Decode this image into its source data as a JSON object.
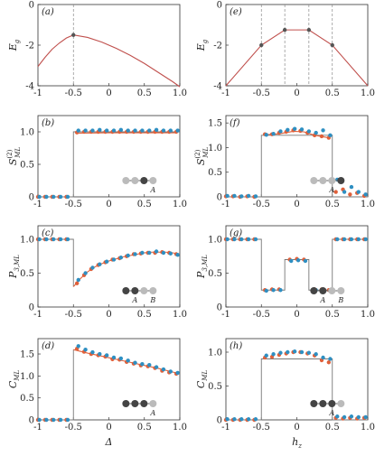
{
  "chart_data": [
    {
      "type": "line",
      "panel_label": "(a)",
      "xlabel": "",
      "ylabel": "E_g",
      "xlim": [
        -1,
        1
      ],
      "ylim": [
        -4,
        0
      ],
      "xticks": [
        "-1",
        "-0.5",
        "0",
        "0.5",
        "1.0"
      ],
      "yticks": [
        "-4",
        "-2",
        "0"
      ],
      "vlines": [
        -0.5
      ],
      "series": [
        {
          "kind": "line",
          "color": "#c0504d",
          "x": [
            -1,
            -0.9,
            -0.8,
            -0.7,
            -0.6,
            -0.5,
            -0.3,
            -0.1,
            0.1,
            0.3,
            0.5,
            0.7,
            0.9,
            1.0
          ],
          "y": [
            -3.05,
            -2.6,
            -2.2,
            -1.9,
            -1.65,
            -1.5,
            -1.62,
            -1.85,
            -2.15,
            -2.5,
            -2.9,
            -3.35,
            -3.8,
            -4.05
          ]
        },
        {
          "kind": "marker",
          "color": "#555555",
          "x": [
            -0.5
          ],
          "y": [
            -1.5
          ]
        }
      ]
    },
    {
      "type": "line",
      "panel_label": "(e)",
      "xlabel": "",
      "ylabel": "E_g",
      "xlim": [
        -1,
        1
      ],
      "ylim": [
        -4,
        0
      ],
      "xticks": [
        "-1",
        "-0.5",
        "0",
        "0.5",
        "1.0"
      ],
      "yticks": [
        "-4",
        "-2",
        "0"
      ],
      "vlines": [
        -0.5,
        -0.17,
        0.17,
        0.5
      ],
      "series": [
        {
          "kind": "line",
          "color": "#c0504d",
          "x": [
            -1,
            -0.5,
            -0.17,
            0.17,
            0.5,
            1.0
          ],
          "y": [
            -4,
            -2,
            -1.25,
            -1.25,
            -2,
            -4
          ]
        },
        {
          "kind": "marker",
          "color": "#555555",
          "x": [
            -0.5,
            -0.17,
            0.17,
            0.5
          ],
          "y": [
            -2,
            -1.25,
            -1.25,
            -2
          ]
        }
      ]
    },
    {
      "type": "scatter",
      "panel_label": "(b)",
      "xlabel": "",
      "ylabel": "S_ML",
      "ylabel_sup": "(2)",
      "xlim": [
        -1,
        1
      ],
      "ylim": [
        0,
        1.25
      ],
      "xticks": [
        "-1",
        "-0.5",
        "0",
        "0.5",
        "1.0"
      ],
      "yticks": [
        "0",
        "0.5",
        "1.0"
      ],
      "step": {
        "x": [
          -1,
          -0.5,
          -0.5,
          1
        ],
        "y": [
          0,
          0,
          1.0,
          1.0
        ]
      },
      "series": [
        {
          "kind": "line",
          "color": "#e0603a",
          "x": [
            -0.45,
            0.0,
            0.5,
            0.95
          ],
          "y": [
            0.98,
            0.985,
            0.985,
            0.985
          ]
        },
        {
          "kind": "marker",
          "color": "#e0603a",
          "x": [
            -1,
            -0.9,
            -0.8,
            -0.7,
            -0.6,
            -0.45,
            -0.35,
            -0.25,
            -0.15,
            -0.05,
            0.05,
            0.15,
            0.25,
            0.35,
            0.45,
            0.55,
            0.65,
            0.75,
            0.85,
            0.95
          ],
          "y": [
            0,
            0,
            0,
            0,
            0,
            0.99,
            1.0,
            1.0,
            1.0,
            1.0,
            1.0,
            1.0,
            1.0,
            1.0,
            1.0,
            1.0,
            1.0,
            1.0,
            1.0,
            1.0
          ]
        },
        {
          "kind": "marker",
          "color": "#2e8fc2",
          "x": [
            -0.98,
            -0.88,
            -0.78,
            -0.68,
            -0.58,
            -0.43,
            -0.33,
            -0.23,
            -0.13,
            -0.03,
            0.07,
            0.17,
            0.27,
            0.37,
            0.47,
            0.57,
            0.67,
            0.77,
            0.87,
            0.97
          ],
          "y": [
            0,
            0,
            0,
            0,
            0,
            1.02,
            1.02,
            1.02,
            1.03,
            1.02,
            1.02,
            1.03,
            1.02,
            1.02,
            1.02,
            1.02,
            1.03,
            1.02,
            1.02,
            1.02
          ]
        }
      ],
      "inset": {
        "pattern": [
          "light",
          "light",
          "dark",
          "light"
        ],
        "labels": [
          {
            "text": "A",
            "at": 3
          }
        ]
      }
    },
    {
      "type": "scatter",
      "panel_label": "(f)",
      "xlabel": "",
      "ylabel": "S_ML",
      "ylabel_sup": "(2)",
      "xlim": [
        -1,
        1
      ],
      "ylim": [
        0,
        1.65
      ],
      "xticks": [
        "-1",
        "-0.5",
        "0",
        "0.5",
        "1.0"
      ],
      "yticks": [
        "0",
        "0.5",
        "1.0",
        "1.5"
      ],
      "step": {
        "x": [
          -1,
          -0.5,
          -0.5,
          0.5,
          0.5,
          1
        ],
        "y": [
          0,
          0,
          1.25,
          1.25,
          0,
          0
        ]
      },
      "series": [
        {
          "kind": "line",
          "color": "#e0603a",
          "x": [
            -0.45,
            -0.25,
            -0.05,
            0.1,
            0.25,
            0.45
          ],
          "y": [
            1.26,
            1.28,
            1.33,
            1.32,
            1.25,
            1.2
          ]
        },
        {
          "kind": "marker",
          "color": "#e0603a",
          "x": [
            -1,
            -0.9,
            -0.8,
            -0.7,
            -0.6,
            -0.45,
            -0.35,
            -0.25,
            -0.15,
            -0.05,
            0.05,
            0.15,
            0.25,
            0.35,
            0.45,
            0.55,
            0.65,
            0.75,
            0.85,
            0.95
          ],
          "y": [
            0.01,
            0.01,
            0.0,
            0.01,
            0.0,
            1.27,
            1.27,
            1.3,
            1.32,
            1.35,
            1.34,
            1.3,
            1.25,
            1.23,
            1.2,
            0.1,
            0.15,
            0.05,
            0.08,
            0.02
          ]
        },
        {
          "kind": "marker",
          "color": "#2e8fc2",
          "x": [
            -0.98,
            -0.88,
            -0.78,
            -0.68,
            -0.58,
            -0.43,
            -0.33,
            -0.23,
            -0.13,
            -0.03,
            0.07,
            0.17,
            0.27,
            0.37,
            0.47,
            0.57,
            0.67,
            0.77,
            0.87,
            0.97
          ],
          "y": [
            0.02,
            0.02,
            0.01,
            0.02,
            0.01,
            1.26,
            1.28,
            1.33,
            1.36,
            1.38,
            1.37,
            1.33,
            1.3,
            1.35,
            1.25,
            0.35,
            0.1,
            0.2,
            0.1,
            0.05
          ]
        }
      ],
      "inset": {
        "pattern": [
          "light",
          "light",
          "light",
          "dark"
        ],
        "labels": [
          {
            "text": "A",
            "at": 2
          }
        ]
      }
    },
    {
      "type": "scatter",
      "panel_label": "(c)",
      "xlabel": "",
      "ylabel": "P_3,ML",
      "xlim": [
        -1,
        1
      ],
      "ylim": [
        0,
        1.2
      ],
      "xticks": [
        "-1",
        "-0.5",
        "0",
        "0.5",
        "1.0"
      ],
      "yticks": [
        "0",
        "0.5",
        "1.0"
      ],
      "step": {
        "x": [
          -1,
          -0.5,
          -0.5
        ],
        "y": [
          1.0,
          1.0,
          0.3
        ]
      },
      "series": [
        {
          "kind": "line",
          "color": "#e0603a",
          "x": [
            -0.5,
            -0.4,
            -0.3,
            -0.2,
            -0.1,
            0.0,
            0.1,
            0.2,
            0.3,
            0.4,
            0.5,
            0.6,
            0.7,
            0.8,
            0.9,
            1.0
          ],
          "y": [
            0.3,
            0.42,
            0.52,
            0.59,
            0.64,
            0.68,
            0.71,
            0.74,
            0.76,
            0.78,
            0.8,
            0.81,
            0.81,
            0.81,
            0.8,
            0.78
          ]
        },
        {
          "kind": "marker",
          "color": "#e0603a",
          "x": [
            -1,
            -0.9,
            -0.8,
            -0.7,
            -0.6,
            -0.45,
            -0.35,
            -0.25,
            -0.15,
            -0.05,
            0.05,
            0.15,
            0.25,
            0.35,
            0.45,
            0.55,
            0.65,
            0.75,
            0.85,
            0.95
          ],
          "y": [
            1.0,
            1.0,
            1.0,
            1.0,
            1.0,
            0.35,
            0.47,
            0.56,
            0.62,
            0.66,
            0.7,
            0.72,
            0.75,
            0.78,
            0.79,
            0.8,
            0.8,
            0.81,
            0.8,
            0.78
          ]
        },
        {
          "kind": "marker",
          "color": "#2e8fc2",
          "x": [
            -0.98,
            -0.88,
            -0.78,
            -0.68,
            -0.58,
            -0.43,
            -0.33,
            -0.23,
            -0.13,
            -0.03,
            0.07,
            0.17,
            0.27,
            0.37,
            0.47,
            0.57,
            0.67,
            0.77,
            0.87,
            0.97
          ],
          "y": [
            1.0,
            1.0,
            1.0,
            1.0,
            1.0,
            0.4,
            0.5,
            0.58,
            0.63,
            0.67,
            0.7,
            0.73,
            0.76,
            0.78,
            0.8,
            0.8,
            0.82,
            0.8,
            0.79,
            0.77
          ]
        }
      ],
      "inset": {
        "pattern": [
          "dark",
          "dark",
          "light",
          "light"
        ],
        "labels": [
          {
            "text": "A",
            "at": 1
          },
          {
            "text": "B",
            "at": 3
          }
        ]
      }
    },
    {
      "type": "scatter",
      "panel_label": "(g)",
      "xlabel": "",
      "ylabel": "P_3,ML",
      "xlim": [
        -1,
        1
      ],
      "ylim": [
        0,
        1.2
      ],
      "xticks": [
        "-1",
        "-0.5",
        "0",
        "0.5",
        "1.0"
      ],
      "yticks": [
        "0",
        "0.5",
        "1.0"
      ],
      "step": {
        "x": [
          -1,
          -0.5,
          -0.5,
          -0.17,
          -0.17,
          0.17,
          0.17,
          0.5,
          0.5,
          1
        ],
        "y": [
          1.0,
          1.0,
          0.25,
          0.25,
          0.7,
          0.7,
          0.25,
          0.25,
          1.0,
          1.0
        ]
      },
      "series": [
        {
          "kind": "marker",
          "color": "#e0603a",
          "x": [
            -1,
            -0.9,
            -0.8,
            -0.7,
            -0.6,
            -0.45,
            -0.35,
            -0.25,
            -0.1,
            0.0,
            0.1,
            0.25,
            0.35,
            0.45,
            0.55,
            0.65,
            0.75,
            0.85,
            0.95
          ],
          "y": [
            1.0,
            1.0,
            1.0,
            1.0,
            1.0,
            0.25,
            0.26,
            0.26,
            0.7,
            0.71,
            0.7,
            0.26,
            0.26,
            0.25,
            1.0,
            1.0,
            1.0,
            1.0,
            1.0
          ]
        },
        {
          "kind": "marker",
          "color": "#2e8fc2",
          "x": [
            -0.98,
            -0.88,
            -0.78,
            -0.68,
            -0.58,
            -0.43,
            -0.33,
            -0.23,
            -0.08,
            0.02,
            0.12,
            0.27,
            0.37,
            0.47,
            0.57,
            0.67,
            0.77,
            0.87,
            0.97
          ],
          "y": [
            1.0,
            1.0,
            1.0,
            1.0,
            1.0,
            0.24,
            0.25,
            0.25,
            0.68,
            0.69,
            0.68,
            0.25,
            0.25,
            0.24,
            1.0,
            1.0,
            1.0,
            1.0,
            1.0
          ]
        }
      ],
      "inset": {
        "pattern": [
          "dark",
          "dark",
          "light",
          "light"
        ],
        "labels": [
          {
            "text": "A",
            "at": 1
          },
          {
            "text": "B",
            "at": 3
          }
        ]
      }
    },
    {
      "type": "scatter",
      "panel_label": "(d)",
      "xlabel": "Δ",
      "ylabel": "C_ML",
      "xlim": [
        -1,
        1
      ],
      "ylim": [
        0,
        1.85
      ],
      "xticks": [
        "-1",
        "-0.5",
        "0",
        "0.5",
        "1.0"
      ],
      "yticks": [
        "0",
        "0.5",
        "1.0",
        "1.5"
      ],
      "step": {
        "x": [
          -1,
          -0.5,
          -0.5
        ],
        "y": [
          0,
          0,
          1.6
        ]
      },
      "series": [
        {
          "kind": "line",
          "color": "#e0603a",
          "x": [
            -0.5,
            -0.3,
            -0.1,
            0.1,
            0.3,
            0.5,
            0.7,
            0.9,
            1.0
          ],
          "y": [
            1.6,
            1.52,
            1.45,
            1.38,
            1.31,
            1.24,
            1.17,
            1.09,
            1.05
          ]
        },
        {
          "kind": "marker",
          "color": "#e0603a",
          "x": [
            -1,
            -0.9,
            -0.8,
            -0.7,
            -0.6,
            -0.45,
            -0.35,
            -0.25,
            -0.15,
            -0.05,
            0.05,
            0.15,
            0.25,
            0.35,
            0.45,
            0.55,
            0.65,
            0.75,
            0.85,
            0.95
          ],
          "y": [
            0,
            0,
            0,
            0,
            0,
            1.62,
            1.55,
            1.5,
            1.47,
            1.44,
            1.38,
            1.37,
            1.32,
            1.28,
            1.24,
            1.22,
            1.18,
            1.12,
            1.08,
            1.05
          ]
        },
        {
          "kind": "marker",
          "color": "#2e8fc2",
          "x": [
            -0.98,
            -0.88,
            -0.78,
            -0.68,
            -0.58,
            -0.43,
            -0.33,
            -0.23,
            -0.13,
            -0.03,
            0.07,
            0.17,
            0.27,
            0.37,
            0.47,
            0.57,
            0.67,
            0.77,
            0.87,
            0.97
          ],
          "y": [
            0,
            0,
            0,
            0,
            0,
            1.68,
            1.6,
            1.54,
            1.5,
            1.47,
            1.42,
            1.4,
            1.35,
            1.3,
            1.27,
            1.25,
            1.2,
            1.15,
            1.1,
            1.07
          ]
        }
      ],
      "inset": {
        "pattern": [
          "dark",
          "dark",
          "dark",
          "light"
        ],
        "labels": [
          {
            "text": "A",
            "at": 3
          }
        ]
      }
    },
    {
      "type": "scatter",
      "panel_label": "(h)",
      "xlabel": "h_z",
      "ylabel": "C_ML",
      "xlim": [
        -1,
        1
      ],
      "ylim": [
        0,
        1.2
      ],
      "xticks": [
        "-1",
        "-0.5",
        "0",
        "0.5",
        "1.0"
      ],
      "yticks": [
        "0",
        "0.5",
        "1.0"
      ],
      "step": {
        "x": [
          -1,
          -0.5,
          -0.5,
          0.5,
          0.5,
          1
        ],
        "y": [
          0,
          0,
          0.9,
          0.9,
          0,
          0
        ]
      },
      "series": [
        {
          "kind": "marker",
          "color": "#e0603a",
          "x": [
            -1,
            -0.9,
            -0.8,
            -0.7,
            -0.6,
            -0.45,
            -0.35,
            -0.25,
            -0.15,
            -0.05,
            0.05,
            0.15,
            0.25,
            0.35,
            0.45,
            0.55,
            0.65,
            0.75,
            0.85,
            0.95
          ],
          "y": [
            0,
            0,
            0,
            0,
            0,
            0.92,
            0.93,
            0.96,
            0.98,
            1.0,
            1.0,
            0.98,
            0.95,
            0.88,
            0.85,
            0.03,
            0.02,
            0.03,
            0.02,
            0.03
          ]
        },
        {
          "kind": "marker",
          "color": "#2e8fc2",
          "x": [
            -0.98,
            -0.88,
            -0.78,
            -0.68,
            -0.58,
            -0.43,
            -0.33,
            -0.23,
            -0.13,
            -0.03,
            0.07,
            0.17,
            0.27,
            0.37,
            0.47,
            0.57,
            0.67,
            0.77,
            0.87,
            0.97
          ],
          "y": [
            0.01,
            0.01,
            0.01,
            0.01,
            0.01,
            0.95,
            0.97,
            0.99,
            1.0,
            1.01,
            1.0,
            0.99,
            0.97,
            0.92,
            0.9,
            0.05,
            0.04,
            0.05,
            0.04,
            0.04
          ]
        }
      ],
      "inset": {
        "pattern": [
          "dark",
          "dark",
          "dark",
          "light"
        ],
        "labels": [
          {
            "text": "A",
            "at": 2
          }
        ]
      }
    }
  ]
}
